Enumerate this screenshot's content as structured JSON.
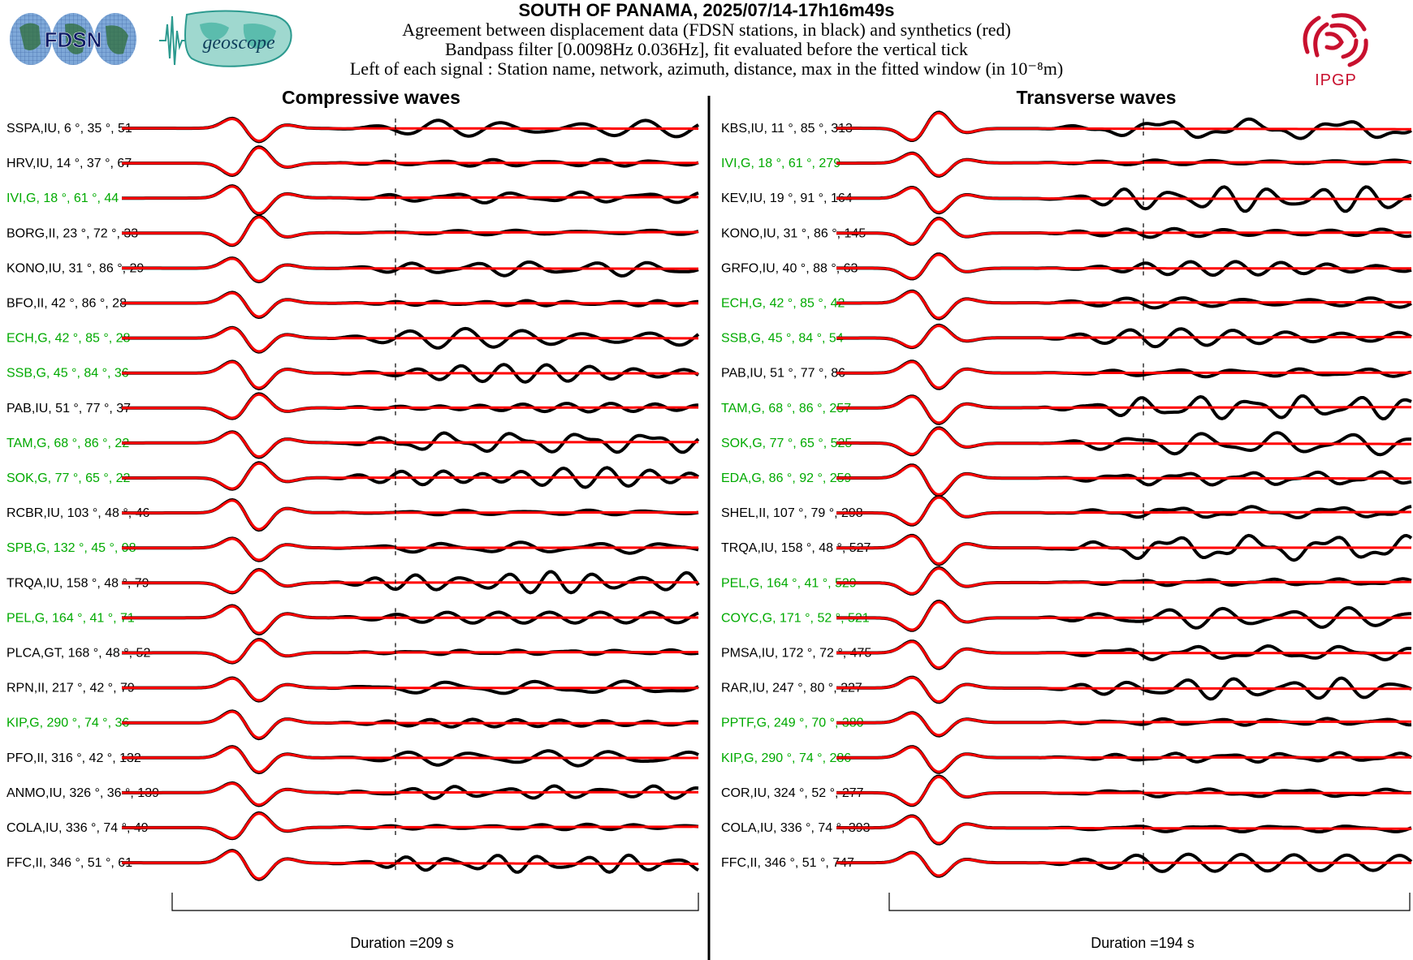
{
  "header": {
    "title": "SOUTH OF PANAMA, 2025/07/14-17h16m49s",
    "subtitle_1": "Agreement between displacement data (FDSN stations, in black) and synthetics (red)",
    "subtitle_2": "Bandpass filter [0.0098Hz 0.036Hz], fit evaluated before the vertical tick",
    "subtitle_3": "Left of each signal : Station name, network, azimuth, distance, max in the fitted window (in 10⁻⁸m)",
    "logos": {
      "fdsn": "FDSN",
      "geoscope": "geoscope",
      "ipgp": "IPGP"
    }
  },
  "colors": {
    "data": "#000000",
    "synthetic": "#ff0000",
    "geoscope_label": "#00aa00",
    "other_label": "#000000",
    "ipgp_red": "#c8102e"
  },
  "chart_data": [
    {
      "type": "line",
      "title": "Compressive waves",
      "footer": "Duration =209 s",
      "duration_s": 209,
      "series_legend": [
        "data (black)",
        "synthetics (red)"
      ],
      "stations": [
        {
          "name": "SSPA",
          "net": "IU",
          "az": 6,
          "dist": 35,
          "max": 51,
          "geoscope": false
        },
        {
          "name": "HRV",
          "net": "IU",
          "az": 14,
          "dist": 37,
          "max": 67,
          "geoscope": false
        },
        {
          "name": "IVI",
          "net": "G",
          "az": 18,
          "dist": 61,
          "max": 44,
          "geoscope": true
        },
        {
          "name": "BORG",
          "net": "II",
          "az": 23,
          "dist": 72,
          "max": 33,
          "geoscope": false
        },
        {
          "name": "KONO",
          "net": "IU",
          "az": 31,
          "dist": 86,
          "max": 29,
          "geoscope": false
        },
        {
          "name": "BFO",
          "net": "II",
          "az": 42,
          "dist": 86,
          "max": 28,
          "geoscope": false
        },
        {
          "name": "ECH",
          "net": "G",
          "az": 42,
          "dist": 85,
          "max": 28,
          "geoscope": true
        },
        {
          "name": "SSB",
          "net": "G",
          "az": 45,
          "dist": 84,
          "max": 36,
          "geoscope": true
        },
        {
          "name": "PAB",
          "net": "IU",
          "az": 51,
          "dist": 77,
          "max": 37,
          "geoscope": false
        },
        {
          "name": "TAM",
          "net": "G",
          "az": 68,
          "dist": 86,
          "max": 22,
          "geoscope": true
        },
        {
          "name": "SOK",
          "net": "G",
          "az": 77,
          "dist": 65,
          "max": 22,
          "geoscope": true
        },
        {
          "name": "RCBR",
          "net": "IU",
          "az": 103,
          "dist": 48,
          "max": 46,
          "geoscope": false
        },
        {
          "name": "SPB",
          "net": "G",
          "az": 132,
          "dist": 45,
          "max": 98,
          "geoscope": true
        },
        {
          "name": "TRQA",
          "net": "IU",
          "az": 158,
          "dist": 48,
          "max": 79,
          "geoscope": false
        },
        {
          "name": "PEL",
          "net": "G",
          "az": 164,
          "dist": 41,
          "max": 71,
          "geoscope": true
        },
        {
          "name": "PLCA",
          "net": "GT",
          "az": 168,
          "dist": 48,
          "max": 52,
          "geoscope": false
        },
        {
          "name": "RPN",
          "net": "II",
          "az": 217,
          "dist": 42,
          "max": 79,
          "geoscope": false
        },
        {
          "name": "KIP",
          "net": "G",
          "az": 290,
          "dist": 74,
          "max": 36,
          "geoscope": true
        },
        {
          "name": "PFO",
          "net": "II",
          "az": 316,
          "dist": 42,
          "max": 132,
          "geoscope": false
        },
        {
          "name": "ANMO",
          "net": "IU",
          "az": 326,
          "dist": 36,
          "max": 139,
          "geoscope": false
        },
        {
          "name": "COLA",
          "net": "IU",
          "az": 336,
          "dist": 74,
          "max": 49,
          "geoscope": false
        },
        {
          "name": "FFC",
          "net": "II",
          "az": 346,
          "dist": 51,
          "max": 61,
          "geoscope": false
        }
      ]
    },
    {
      "type": "line",
      "title": "Transverse waves",
      "footer": "Duration =194 s",
      "duration_s": 194,
      "series_legend": [
        "data (black)",
        "synthetics (red)"
      ],
      "stations": [
        {
          "name": "KBS",
          "net": "IU",
          "az": 11,
          "dist": 85,
          "max": 313,
          "geoscope": false
        },
        {
          "name": "IVI",
          "net": "G",
          "az": 18,
          "dist": 61,
          "max": 279,
          "geoscope": true
        },
        {
          "name": "KEV",
          "net": "IU",
          "az": 19,
          "dist": 91,
          "max": 164,
          "geoscope": false
        },
        {
          "name": "KONO",
          "net": "IU",
          "az": 31,
          "dist": 86,
          "max": 145,
          "geoscope": false
        },
        {
          "name": "GRFO",
          "net": "IU",
          "az": 40,
          "dist": 88,
          "max": 63,
          "geoscope": false
        },
        {
          "name": "ECH",
          "net": "G",
          "az": 42,
          "dist": 85,
          "max": 42,
          "geoscope": true
        },
        {
          "name": "SSB",
          "net": "G",
          "az": 45,
          "dist": 84,
          "max": 54,
          "geoscope": true
        },
        {
          "name": "PAB",
          "net": "IU",
          "az": 51,
          "dist": 77,
          "max": 86,
          "geoscope": false
        },
        {
          "name": "TAM",
          "net": "G",
          "az": 68,
          "dist": 86,
          "max": 257,
          "geoscope": true
        },
        {
          "name": "SOK",
          "net": "G",
          "az": 77,
          "dist": 65,
          "max": 525,
          "geoscope": true
        },
        {
          "name": "EDA",
          "net": "G",
          "az": 86,
          "dist": 92,
          "max": 259,
          "geoscope": true
        },
        {
          "name": "SHEL",
          "net": "II",
          "az": 107,
          "dist": 79,
          "max": 298,
          "geoscope": false
        },
        {
          "name": "TRQA",
          "net": "IU",
          "az": 158,
          "dist": 48,
          "max": 527,
          "geoscope": false
        },
        {
          "name": "PEL",
          "net": "G",
          "az": 164,
          "dist": 41,
          "max": 529,
          "geoscope": true
        },
        {
          "name": "COYC",
          "net": "G",
          "az": 171,
          "dist": 52,
          "max": 521,
          "geoscope": true
        },
        {
          "name": "PMSA",
          "net": "IU",
          "az": 172,
          "dist": 72,
          "max": 475,
          "geoscope": false
        },
        {
          "name": "RAR",
          "net": "IU",
          "az": 247,
          "dist": 80,
          "max": 227,
          "geoscope": false
        },
        {
          "name": "PPTF",
          "net": "G",
          "az": 249,
          "dist": 70,
          "max": 380,
          "geoscope": true
        },
        {
          "name": "KIP",
          "net": "G",
          "az": 290,
          "dist": 74,
          "max": 286,
          "geoscope": true
        },
        {
          "name": "COR",
          "net": "IU",
          "az": 324,
          "dist": 52,
          "max": 277,
          "geoscope": false
        },
        {
          "name": "COLA",
          "net": "IU",
          "az": 336,
          "dist": 74,
          "max": 393,
          "geoscope": false
        },
        {
          "name": "FFC",
          "net": "II",
          "az": 346,
          "dist": 51,
          "max": 747,
          "geoscope": false
        }
      ]
    }
  ]
}
